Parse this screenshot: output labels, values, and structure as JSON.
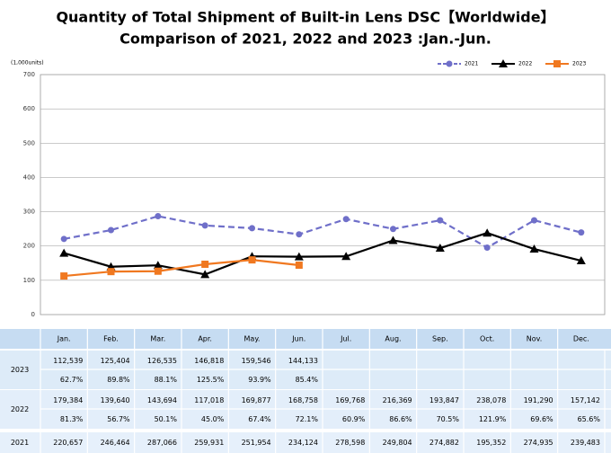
{
  "chart_data": {
    "type": "line",
    "title": [
      "Quantity of Total Shipment of Built-in Lens DSC【Worldwide】",
      "Comparison of 2021, 2022 and 2023 :Jan.-Jun."
    ],
    "y_label": "(1,000units)",
    "categories": [
      "Jan.",
      "Feb.",
      "Mar.",
      "Apr.",
      "May.",
      "Jun.",
      "Jul.",
      "Aug.",
      "Sep.",
      "Oct.",
      "Nov.",
      "Dec."
    ],
    "ylim": [
      0,
      700
    ],
    "yticks": [
      0,
      100,
      200,
      300,
      400,
      500,
      600,
      700
    ],
    "grid": true,
    "series": [
      {
        "name": "2021",
        "color": "#6f6fc9",
        "dashed": true,
        "marker": "circle",
        "values": [
          220.657,
          246.464,
          287.066,
          259.931,
          251.954,
          234.124,
          278.598,
          249.804,
          274.882,
          195.352,
          274.935,
          239.483
        ],
        "value_labels": [
          "220,657",
          "246,464",
          "287,066",
          "259,931",
          "251,954",
          "234,124",
          "278,598",
          "249,804",
          "274,882",
          "195,352",
          "274,935",
          "239,483"
        ]
      },
      {
        "name": "2022",
        "color": "#000000",
        "dashed": false,
        "marker": "triangle",
        "values": [
          179.384,
          139.64,
          143.694,
          117.018,
          169.877,
          168.758,
          169.768,
          216.369,
          193.847,
          238.078,
          191.29,
          157.142
        ],
        "value_labels": [
          "179,384",
          "139,640",
          "143,694",
          "117,018",
          "169,877",
          "168,758",
          "169,768",
          "216,369",
          "193,847",
          "238,078",
          "191,290",
          "157,142"
        ],
        "ratios": [
          "81.3%",
          "56.7%",
          "50.1%",
          "45.0%",
          "67.4%",
          "72.1%",
          "60.9%",
          "86.6%",
          "70.5%",
          "121.9%",
          "69.6%",
          "65.6%"
        ]
      },
      {
        "name": "2023",
        "color": "#f07820",
        "dashed": false,
        "marker": "square",
        "values": [
          112.539,
          125.404,
          126.535,
          146.818,
          159.546,
          144.133,
          null,
          null,
          null,
          null,
          null,
          null
        ],
        "value_labels": [
          "112,539",
          "125,404",
          "126,535",
          "146,818",
          "159,546",
          "144,133",
          null,
          null,
          null,
          null,
          null,
          null
        ],
        "ratios": [
          "62.7%",
          "89.8%",
          "88.1%",
          "125.5%",
          "93.9%",
          "85.4%",
          null,
          null,
          null,
          null,
          null,
          null
        ]
      }
    ]
  }
}
